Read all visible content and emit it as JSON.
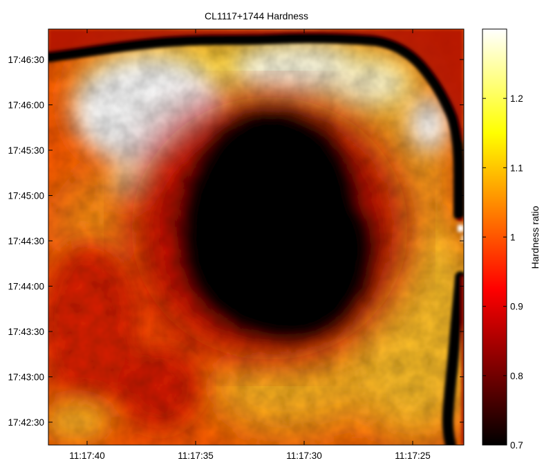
{
  "chart_data": {
    "type": "heatmap",
    "title": "CL1117+1744 Hardness",
    "xlabel": "",
    "ylabel": "",
    "x_ticks": [
      "11:17:40",
      "11:17:35",
      "11:17:30",
      "11:17:25"
    ],
    "y_ticks": [
      "17:46:30",
      "17:46:00",
      "17:45:30",
      "17:45:00",
      "17:44:30",
      "17:44:00",
      "17:43:30",
      "17:43:00",
      "17:42:30"
    ],
    "colorbar": {
      "label": "Hardness ratio",
      "min": 0.7,
      "max": 1.3,
      "ticks": [
        "0.7",
        "0.8",
        "0.9",
        "1",
        "1.1",
        "1.2"
      ],
      "colormap": "hot"
    },
    "features": {
      "central_dark_region_value": 0.7,
      "surrounding_ring_value": 0.95,
      "outer_bright_value": 1.2,
      "upper_left_peak_value": 1.3,
      "border_dark_stripe_value": 0.7
    }
  }
}
